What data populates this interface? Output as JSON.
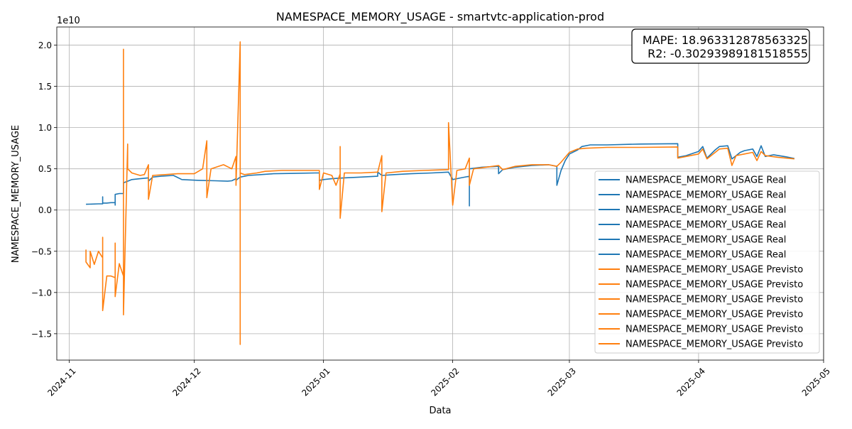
{
  "chart_data": {
    "type": "line",
    "title": "NAMESPACE_MEMORY_USAGE - smartvtc-application-prod",
    "xlabel": "Data",
    "ylabel": "NAMESPACE_MEMORY_USAGE",
    "y_offset_label": "1e10",
    "y_scale": 10000000000.0,
    "x_type": "date",
    "xlim": [
      "2024-10-29",
      "2025-05-01"
    ],
    "ylim": [
      -1.82,
      2.22
    ],
    "x_ticks": [
      "2024-11-01",
      "2024-12-01",
      "2025-01-01",
      "2025-02-01",
      "2025-03-01",
      "2025-04-01",
      "2025-05-01"
    ],
    "x_tick_labels": [
      "2024-11",
      "2024-12",
      "2025-01",
      "2025-02",
      "2025-03",
      "2025-04",
      "2025-05"
    ],
    "y_ticks": [
      -1.5,
      -1.0,
      -0.5,
      0.0,
      0.5,
      1.0,
      1.5,
      2.0
    ],
    "y_tick_labels": [
      "−1.5",
      "−1.0",
      "−0.5",
      "0.0",
      "0.5",
      "1.0",
      "1.5",
      "2.0"
    ],
    "grid": true,
    "legend_position": "lower-right",
    "colors": {
      "real": "#1f77b4",
      "previsto": "#ff7f0e"
    },
    "metrics": [
      {
        "key": "MAPE",
        "value": "18.963312878563325"
      },
      {
        "key": "R2",
        "value": "-0.30293989181518555"
      }
    ],
    "series": [
      {
        "name": "NAMESPACE_MEMORY_USAGE Real",
        "color": "#1f77b4",
        "points": [
          [
            "2024-11-05",
            0.07
          ],
          [
            "2024-11-08",
            0.075
          ],
          [
            "2024-11-09",
            0.075
          ],
          [
            "2024-11-09",
            0.16
          ],
          [
            "2024-11-09",
            0.085
          ],
          [
            "2024-11-10",
            0.085
          ],
          [
            "2024-11-11",
            0.09
          ],
          [
            "2024-11-12",
            0.09
          ],
          [
            "2024-11-12",
            0.06
          ],
          [
            "2024-11-12",
            0.19
          ],
          [
            "2024-11-13",
            0.2
          ],
          [
            "2024-11-14",
            0.2
          ],
          [
            "2024-11-14",
            0.33
          ],
          [
            "2024-11-15",
            0.35
          ],
          [
            "2024-11-16",
            0.37
          ],
          [
            "2024-11-18",
            0.38
          ],
          [
            "2024-11-20",
            0.39
          ],
          [
            "2024-11-20",
            0.35
          ],
          [
            "2024-11-21",
            0.4
          ],
          [
            "2024-11-23",
            0.41
          ],
          [
            "2024-11-26",
            0.42
          ],
          [
            "2024-11-28",
            0.37
          ],
          [
            "2024-12-02",
            0.36
          ],
          [
            "2024-12-06",
            0.355
          ],
          [
            "2024-12-09",
            0.35
          ],
          [
            "2024-12-10",
            0.355
          ],
          [
            "2024-12-11",
            0.38
          ],
          [
            "2024-12-11",
            0.36
          ],
          [
            "2024-12-12",
            0.4
          ],
          [
            "2024-12-14",
            0.42
          ],
          [
            "2024-12-17",
            0.43
          ],
          [
            "2024-12-20",
            0.44
          ],
          [
            "2024-12-25",
            0.445
          ],
          [
            "2024-12-30",
            0.45
          ],
          [
            "2024-12-31",
            0.45
          ],
          [
            "2024-12-31",
            0.36
          ],
          [
            "2025-01-01",
            0.37
          ],
          [
            "2025-01-03",
            0.38
          ],
          [
            "2025-01-06",
            0.39
          ],
          [
            "2025-01-10",
            0.4
          ],
          [
            "2025-01-14",
            0.41
          ],
          [
            "2025-01-14",
            0.46
          ],
          [
            "2025-01-15",
            0.42
          ],
          [
            "2025-01-18",
            0.43
          ],
          [
            "2025-01-22",
            0.44
          ],
          [
            "2025-01-27",
            0.45
          ],
          [
            "2025-01-31",
            0.46
          ],
          [
            "2025-02-01",
            0.37
          ],
          [
            "2025-02-03",
            0.39
          ],
          [
            "2025-02-05",
            0.41
          ],
          [
            "2025-02-05",
            0.05
          ],
          [
            "2025-02-05",
            0.5
          ],
          [
            "2025-02-08",
            0.52
          ],
          [
            "2025-02-12",
            0.53
          ],
          [
            "2025-02-12",
            0.44
          ],
          [
            "2025-02-13",
            0.49
          ],
          [
            "2025-02-16",
            0.52
          ],
          [
            "2025-02-20",
            0.54
          ],
          [
            "2025-02-24",
            0.55
          ],
          [
            "2025-02-26",
            0.53
          ],
          [
            "2025-02-26",
            0.3
          ],
          [
            "2025-02-27",
            0.48
          ],
          [
            "2025-02-28",
            0.6
          ],
          [
            "2025-03-01",
            0.68
          ],
          [
            "2025-03-03",
            0.73
          ],
          [
            "2025-03-04",
            0.77
          ],
          [
            "2025-03-06",
            0.79
          ],
          [
            "2025-03-10",
            0.79
          ],
          [
            "2025-03-18",
            0.8
          ],
          [
            "2025-03-27",
            0.805
          ],
          [
            "2025-03-27",
            0.64
          ],
          [
            "2025-03-29",
            0.66
          ],
          [
            "2025-04-01",
            0.71
          ],
          [
            "2025-04-02",
            0.77
          ],
          [
            "2025-04-03",
            0.63
          ],
          [
            "2025-04-05",
            0.73
          ],
          [
            "2025-04-06",
            0.77
          ],
          [
            "2025-04-08",
            0.78
          ],
          [
            "2025-04-09",
            0.62
          ],
          [
            "2025-04-11",
            0.7
          ],
          [
            "2025-04-12",
            0.72
          ],
          [
            "2025-04-14",
            0.74
          ],
          [
            "2025-04-15",
            0.65
          ],
          [
            "2025-04-16",
            0.78
          ],
          [
            "2025-04-17",
            0.65
          ],
          [
            "2025-04-19",
            0.67
          ],
          [
            "2025-04-22",
            0.645
          ],
          [
            "2025-04-24",
            0.625
          ]
        ]
      },
      {
        "name": "NAMESPACE_MEMORY_USAGE Previsto",
        "color": "#ff7f0e",
        "points": [
          [
            "2024-11-05",
            -0.48
          ],
          [
            "2024-11-05",
            -0.63
          ],
          [
            "2024-11-06",
            -0.7
          ],
          [
            "2024-11-06",
            -0.5
          ],
          [
            "2024-11-07",
            -0.66
          ],
          [
            "2024-11-08",
            -0.5
          ],
          [
            "2024-11-09",
            -0.58
          ],
          [
            "2024-11-09",
            -0.33
          ],
          [
            "2024-11-09",
            -1.22
          ],
          [
            "2024-11-10",
            -0.8
          ],
          [
            "2024-11-11",
            -0.8
          ],
          [
            "2024-11-12",
            -0.82
          ],
          [
            "2024-11-12",
            -0.4
          ],
          [
            "2024-11-12",
            -1.05
          ],
          [
            "2024-11-13",
            -0.65
          ],
          [
            "2024-11-14",
            -0.8
          ],
          [
            "2024-11-14",
            1.95
          ],
          [
            "2024-11-14",
            -1.27
          ],
          [
            "2024-11-15",
            0.8
          ],
          [
            "2024-11-15",
            0.5
          ],
          [
            "2024-11-16",
            0.45
          ],
          [
            "2024-11-18",
            0.42
          ],
          [
            "2024-11-19",
            0.43
          ],
          [
            "2024-11-20",
            0.55
          ],
          [
            "2024-11-20",
            0.13
          ],
          [
            "2024-11-21",
            0.42
          ],
          [
            "2024-11-24",
            0.43
          ],
          [
            "2024-11-27",
            0.44
          ],
          [
            "2024-12-01",
            0.44
          ],
          [
            "2024-12-03",
            0.5
          ],
          [
            "2024-12-04",
            0.84
          ],
          [
            "2024-12-04",
            0.15
          ],
          [
            "2024-12-05",
            0.5
          ],
          [
            "2024-12-08",
            0.55
          ],
          [
            "2024-12-10",
            0.5
          ],
          [
            "2024-12-11",
            0.65
          ],
          [
            "2024-12-11",
            0.3
          ],
          [
            "2024-12-12",
            2.04
          ],
          [
            "2024-12-12",
            -1.63
          ],
          [
            "2024-12-12",
            0.45
          ],
          [
            "2024-12-13",
            0.43
          ],
          [
            "2024-12-16",
            0.45
          ],
          [
            "2024-12-18",
            0.47
          ],
          [
            "2024-12-22",
            0.48
          ],
          [
            "2024-12-27",
            0.48
          ],
          [
            "2024-12-31",
            0.48
          ],
          [
            "2024-12-31",
            0.25
          ],
          [
            "2025-01-01",
            0.45
          ],
          [
            "2025-01-03",
            0.42
          ],
          [
            "2025-01-04",
            0.3
          ],
          [
            "2025-01-05",
            0.44
          ],
          [
            "2025-01-05",
            0.77
          ],
          [
            "2025-01-05",
            -0.1
          ],
          [
            "2025-01-06",
            0.45
          ],
          [
            "2025-01-10",
            0.45
          ],
          [
            "2025-01-14",
            0.46
          ],
          [
            "2025-01-15",
            0.66
          ],
          [
            "2025-01-15",
            -0.02
          ],
          [
            "2025-01-16",
            0.45
          ],
          [
            "2025-01-20",
            0.47
          ],
          [
            "2025-01-25",
            0.48
          ],
          [
            "2025-01-31",
            0.49
          ],
          [
            "2025-01-31",
            1.06
          ],
          [
            "2025-02-01",
            0.06
          ],
          [
            "2025-02-02",
            0.48
          ],
          [
            "2025-02-04",
            0.5
          ],
          [
            "2025-02-05",
            0.63
          ],
          [
            "2025-02-05",
            0.3
          ],
          [
            "2025-02-06",
            0.5
          ],
          [
            "2025-02-09",
            0.52
          ],
          [
            "2025-02-12",
            0.54
          ],
          [
            "2025-02-13",
            0.49
          ],
          [
            "2025-02-16",
            0.53
          ],
          [
            "2025-02-20",
            0.55
          ],
          [
            "2025-02-24",
            0.55
          ],
          [
            "2025-02-26",
            0.53
          ],
          [
            "2025-02-27",
            0.58
          ],
          [
            "2025-02-28",
            0.64
          ],
          [
            "2025-03-01",
            0.7
          ],
          [
            "2025-03-03",
            0.74
          ],
          [
            "2025-03-05",
            0.75
          ],
          [
            "2025-03-10",
            0.76
          ],
          [
            "2025-03-18",
            0.76
          ],
          [
            "2025-03-27",
            0.765
          ],
          [
            "2025-03-27",
            0.63
          ],
          [
            "2025-03-29",
            0.65
          ],
          [
            "2025-04-01",
            0.68
          ],
          [
            "2025-04-02",
            0.74
          ],
          [
            "2025-04-03",
            0.62
          ],
          [
            "2025-04-05",
            0.7
          ],
          [
            "2025-04-06",
            0.74
          ],
          [
            "2025-04-08",
            0.75
          ],
          [
            "2025-04-09",
            0.54
          ],
          [
            "2025-04-10",
            0.66
          ],
          [
            "2025-04-12",
            0.68
          ],
          [
            "2025-04-14",
            0.7
          ],
          [
            "2025-04-15",
            0.6
          ],
          [
            "2025-04-16",
            0.71
          ],
          [
            "2025-04-17",
            0.66
          ],
          [
            "2025-04-20",
            0.64
          ],
          [
            "2025-04-24",
            0.62
          ]
        ]
      }
    ],
    "legend": [
      {
        "label": "NAMESPACE_MEMORY_USAGE Real",
        "color": "#1f77b4"
      },
      {
        "label": "NAMESPACE_MEMORY_USAGE Real",
        "color": "#1f77b4"
      },
      {
        "label": "NAMESPACE_MEMORY_USAGE Real",
        "color": "#1f77b4"
      },
      {
        "label": "NAMESPACE_MEMORY_USAGE Real",
        "color": "#1f77b4"
      },
      {
        "label": "NAMESPACE_MEMORY_USAGE Real",
        "color": "#1f77b4"
      },
      {
        "label": "NAMESPACE_MEMORY_USAGE Real",
        "color": "#1f77b4"
      },
      {
        "label": "NAMESPACE_MEMORY_USAGE Previsto",
        "color": "#ff7f0e"
      },
      {
        "label": "NAMESPACE_MEMORY_USAGE Previsto",
        "color": "#ff7f0e"
      },
      {
        "label": "NAMESPACE_MEMORY_USAGE Previsto",
        "color": "#ff7f0e"
      },
      {
        "label": "NAMESPACE_MEMORY_USAGE Previsto",
        "color": "#ff7f0e"
      },
      {
        "label": "NAMESPACE_MEMORY_USAGE Previsto",
        "color": "#ff7f0e"
      },
      {
        "label": "NAMESPACE_MEMORY_USAGE Previsto",
        "color": "#ff7f0e"
      }
    ]
  }
}
